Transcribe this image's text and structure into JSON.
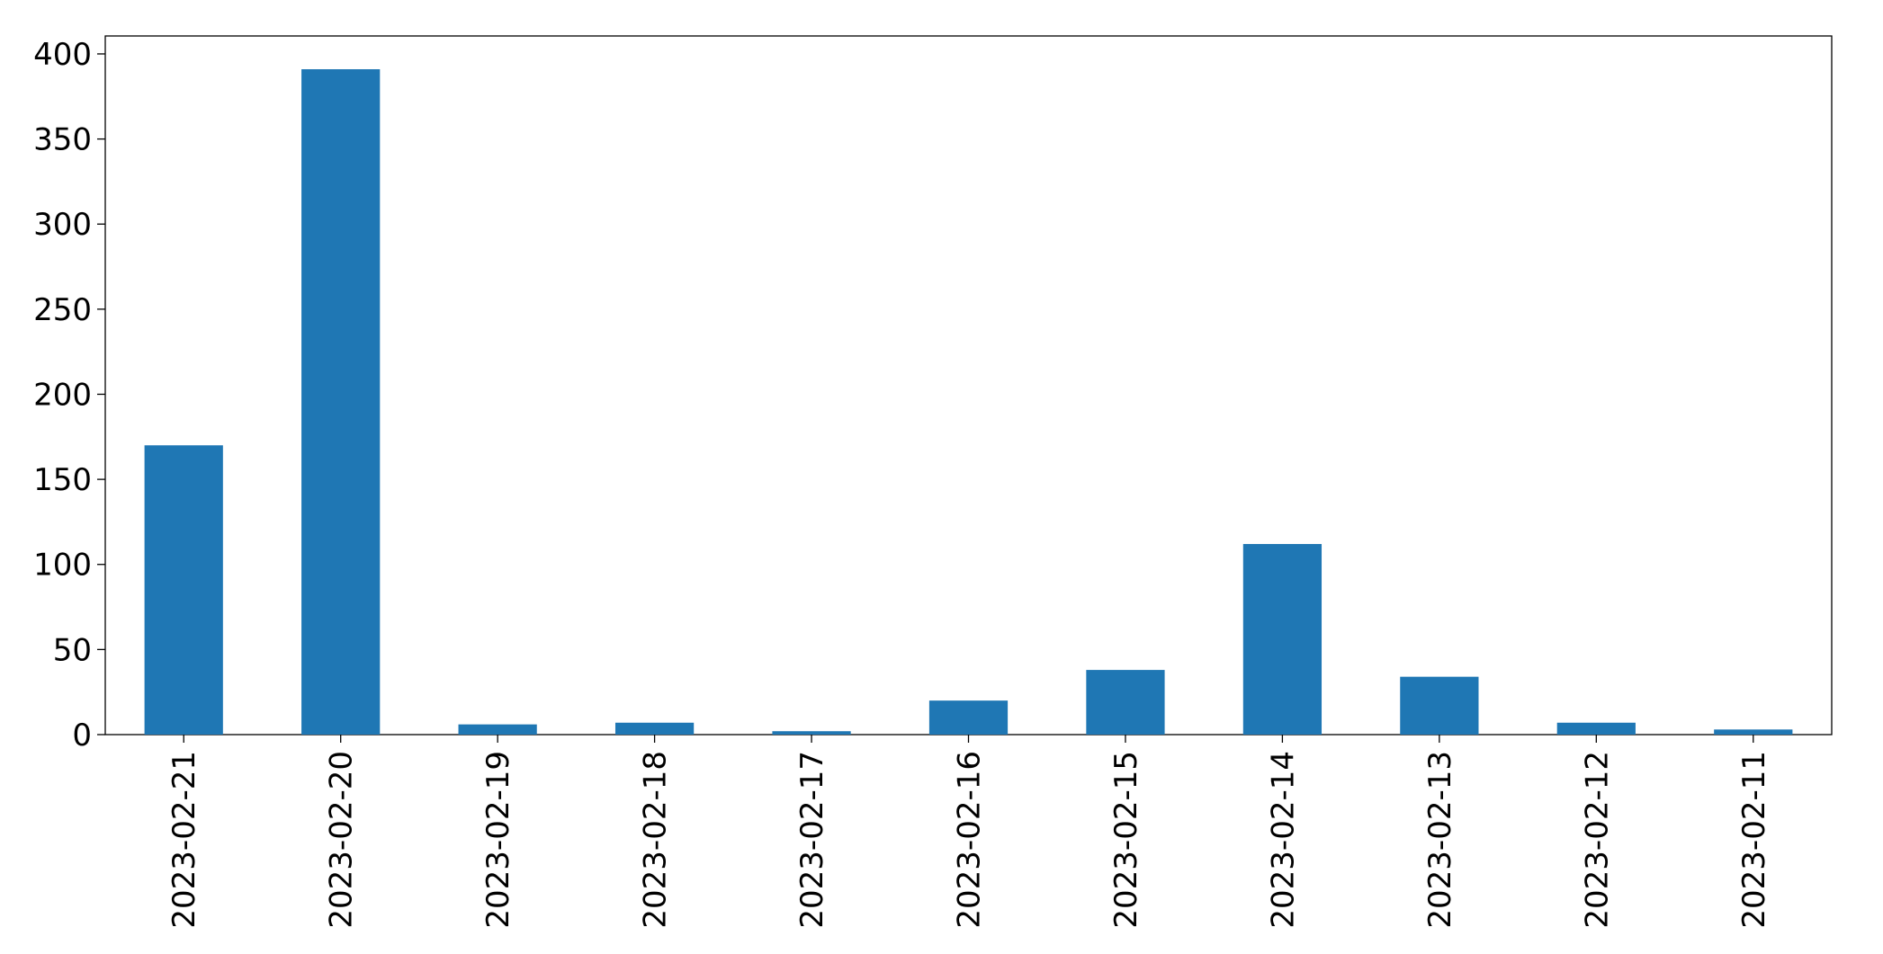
{
  "chart_data": {
    "type": "bar",
    "categories": [
      "2023-02-21",
      "2023-02-20",
      "2023-02-19",
      "2023-02-18",
      "2023-02-17",
      "2023-02-16",
      "2023-02-15",
      "2023-02-14",
      "2023-02-13",
      "2023-02-12",
      "2023-02-11"
    ],
    "values": [
      170,
      391,
      6,
      7,
      2,
      20,
      38,
      112,
      34,
      7,
      3
    ],
    "color": "#1f77b4",
    "ylim": [
      0,
      410.55
    ],
    "yticks": [
      0,
      50,
      100,
      150,
      200,
      250,
      300,
      350,
      400
    ],
    "grid": false
  }
}
